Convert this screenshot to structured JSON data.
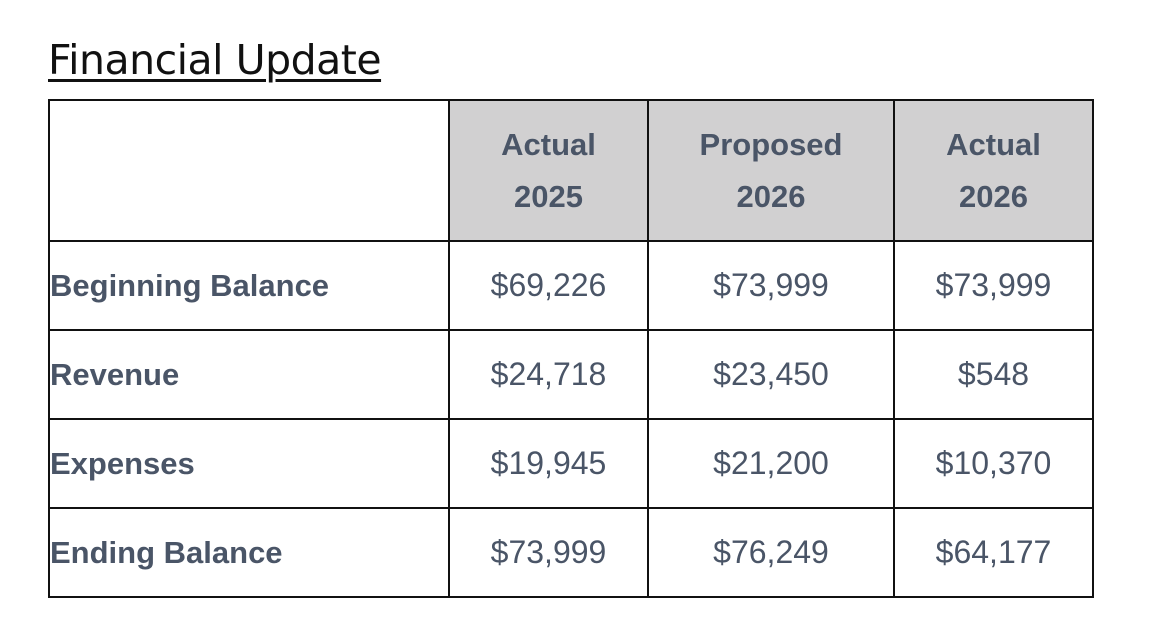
{
  "title": "Financial Update",
  "table": {
    "columns": [
      {
        "line1": "Actual",
        "line2": "2025"
      },
      {
        "line1": "Proposed",
        "line2": "2026"
      },
      {
        "line1": "Actual",
        "line2": "2026"
      }
    ],
    "rows": [
      {
        "label": "Beginning Balance",
        "values": [
          "$69,226",
          "$73,999",
          "$73,999"
        ]
      },
      {
        "label": "Revenue",
        "values": [
          "$24,718",
          "$23,450",
          "$548"
        ]
      },
      {
        "label": "Expenses",
        "values": [
          "$19,945",
          "$21,200",
          "$10,370"
        ]
      },
      {
        "label": "Ending Balance",
        "values": [
          "$73,999",
          "$76,249",
          "$64,177"
        ]
      }
    ]
  },
  "colors": {
    "header_fill": "#d1d0d1",
    "text": "#4a5567",
    "border": "#111111"
  }
}
